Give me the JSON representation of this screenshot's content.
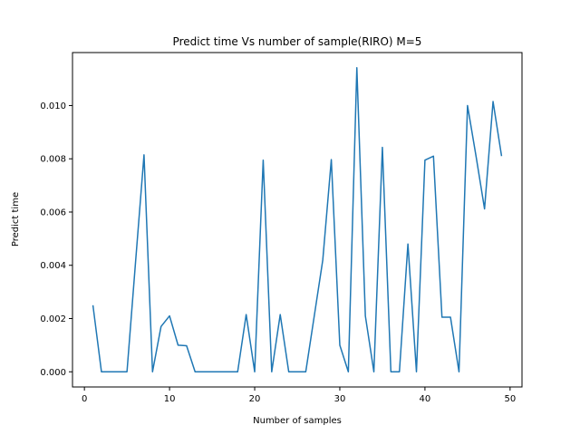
{
  "chart_data": {
    "type": "line",
    "title": "Predict time Vs number of sample(RIRO) M=5",
    "xlabel": "Number of samples",
    "ylabel": "Predict time",
    "xlim": [
      -1.4,
      51.4
    ],
    "ylim": [
      -0.00057,
      0.01199
    ],
    "xticks": [
      0,
      10,
      20,
      30,
      40,
      50
    ],
    "xtick_labels": [
      "0",
      "10",
      "20",
      "30",
      "40",
      "50"
    ],
    "yticks": [
      0,
      0.002,
      0.004,
      0.006,
      0.008,
      0.01
    ],
    "ytick_labels": [
      "0.000",
      "0.002",
      "0.004",
      "0.006",
      "0.008",
      "0.010"
    ],
    "grid": false,
    "line_color": "#1f77b4",
    "series": [
      {
        "x": [
          1,
          2,
          3,
          4,
          5,
          6,
          7,
          8,
          9,
          10,
          11,
          12,
          13,
          14,
          15,
          16,
          17,
          18,
          19,
          20,
          21,
          22,
          23,
          24,
          25,
          26,
          27,
          28,
          29,
          30,
          31,
          32,
          33,
          34,
          35,
          36,
          37,
          38,
          39,
          40,
          41,
          42,
          43,
          44,
          45,
          46,
          47,
          48,
          49
        ],
        "values": [
          0.0025,
          0.0,
          0.0,
          0.0,
          0.0,
          0.0041,
          0.00815,
          0.0,
          0.0017,
          0.0021,
          0.001,
          0.00098,
          0.0,
          0.0,
          0.0,
          0.0,
          0.0,
          0.0,
          0.00215,
          0.0,
          0.00795,
          0.0,
          0.00215,
          0.0,
          0.0,
          0.0,
          0.0021,
          0.0042,
          0.00797,
          0.001,
          0.0,
          0.01142,
          0.0021,
          0.0,
          0.00843,
          0.0,
          0.0,
          0.0048,
          0.0,
          0.00795,
          0.0081,
          0.00205,
          0.00205,
          0.0,
          0.01,
          0.0081,
          0.00612,
          0.01015,
          0.0081
        ]
      }
    ]
  }
}
